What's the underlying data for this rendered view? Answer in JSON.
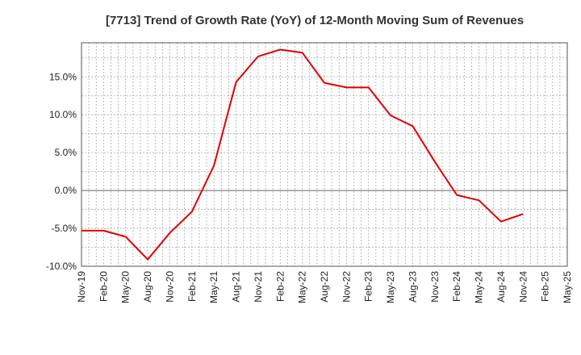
{
  "chart_data": {
    "type": "line",
    "title": "[7713]  Trend of Growth Rate (YoY) of 12-Month Moving Sum of Revenues",
    "xlabel": "",
    "ylabel": "",
    "x_tick_labels": [
      "Nov-19",
      "Feb-20",
      "May-20",
      "Aug-20",
      "Nov-20",
      "Feb-21",
      "May-21",
      "Aug-21",
      "Nov-21",
      "Feb-22",
      "May-22",
      "Aug-22",
      "Nov-22",
      "Feb-23",
      "May-23",
      "Aug-23",
      "Nov-23",
      "Feb-24",
      "May-24",
      "Aug-24",
      "Nov-24",
      "Feb-25",
      "May-25"
    ],
    "y_ticks": [
      -10,
      -5,
      0,
      5,
      10,
      15
    ],
    "y_tick_labels": [
      "-10.0%",
      "-5.0%",
      "0.0%",
      "5.0%",
      "10.0%",
      "15.0%"
    ],
    "ylim": [
      -10,
      19.5
    ],
    "grid": true,
    "series": [
      {
        "color": "#e00000",
        "x": [
          "Nov-19",
          "Feb-20",
          "May-20",
          "Aug-20",
          "Nov-20",
          "Feb-21",
          "May-21",
          "Aug-21",
          "Nov-21",
          "Feb-22",
          "May-22",
          "Aug-22",
          "Nov-22",
          "Feb-23",
          "May-23",
          "Aug-23",
          "Nov-23",
          "Feb-24",
          "May-24",
          "Aug-24",
          "Nov-24"
        ],
        "values": [
          -5.3,
          -5.3,
          -6.1,
          -9.1,
          -5.6,
          -2.8,
          3.3,
          14.3,
          17.7,
          18.6,
          18.2,
          14.2,
          13.6,
          13.6,
          9.9,
          8.5,
          3.8,
          -0.6,
          -1.3,
          -4.1,
          -3.1
        ]
      }
    ]
  }
}
